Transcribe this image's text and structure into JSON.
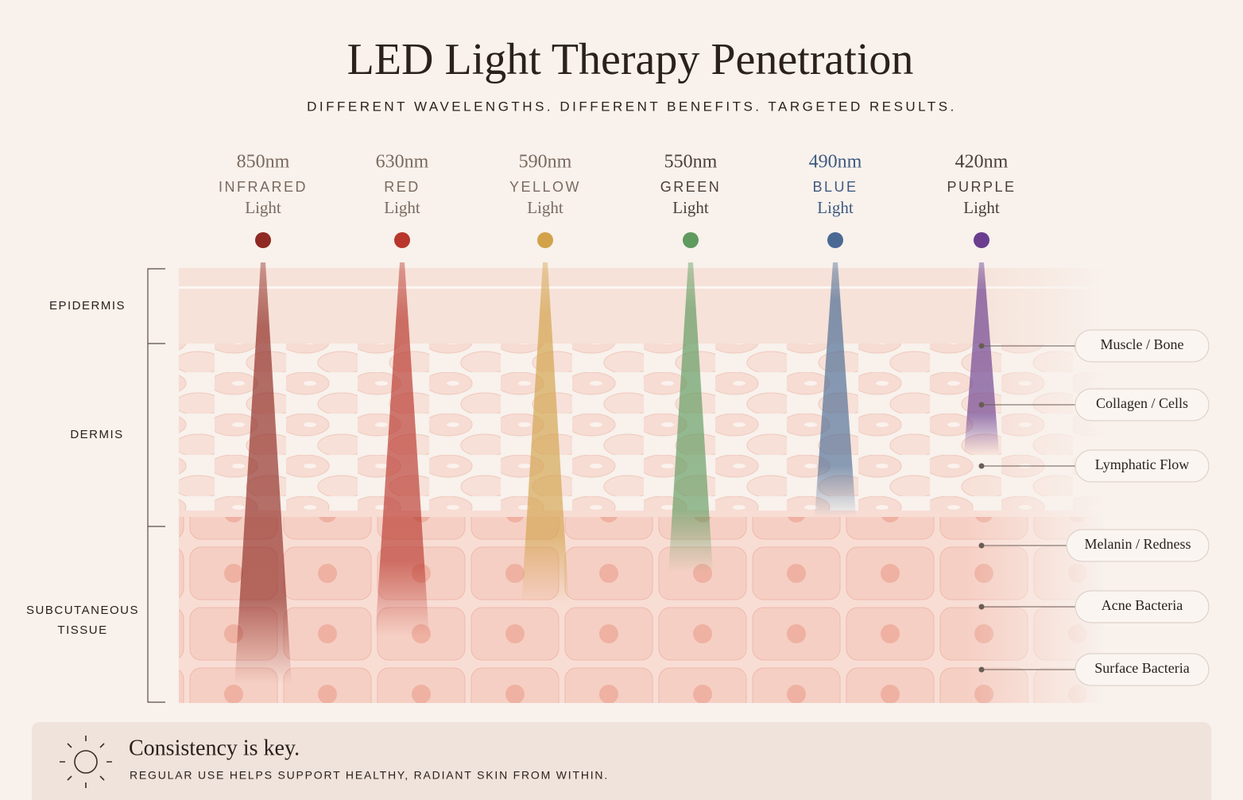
{
  "title": "LED Light Therapy Penetration",
  "subtitle": "DIFFERENT WAVELENGTHS. DIFFERENT BENEFITS. TARGETED RESULTS.",
  "wavelengths": [
    {
      "nm": "850nm",
      "name": "INFRARED",
      "light": "Light",
      "color": "#8e2a22",
      "text_color": "#7a6a5f"
    },
    {
      "nm": "630nm",
      "name": "RED",
      "light": "Light",
      "color": "#b8362c",
      "text_color": "#7a6a5f"
    },
    {
      "nm": "590nm",
      "name": "YELLOW",
      "light": "Light",
      "color": "#d2a24a",
      "text_color": "#7a6a5f"
    },
    {
      "nm": "550nm",
      "name": "GREEN",
      "light": "Light",
      "color": "#5f9a5e",
      "text_color": "#4a4038"
    },
    {
      "nm": "490nm",
      "name": "BLUE",
      "light": "Light",
      "color": "#4a6a93",
      "text_color": "#3e5a80"
    },
    {
      "nm": "420nm",
      "name": "PURPLE",
      "light": "Light",
      "color": "#6a3d8e",
      "text_color": "#4a4038"
    }
  ],
  "layers": [
    "EPIDERMIS",
    "DERMIS",
    "SUBCUTANEOUS TISSUE"
  ],
  "targets": [
    "Muscle / Bone",
    "Collagen / Cells",
    "Lymphatic Flow",
    "Melanin / Redness",
    "Acne Bacteria",
    "Surface Bacteria"
  ],
  "footer": {
    "heading": "Consistency is key.",
    "text": "REGULAR USE HELPS SUPPORT HEALTHY, RADIANT SKIN FROM WITHIN."
  }
}
